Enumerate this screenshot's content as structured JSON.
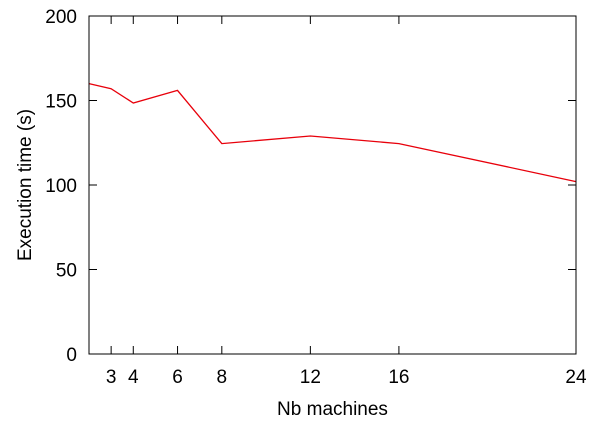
{
  "chart_data": {
    "type": "line",
    "title": "",
    "xlabel": "Nb machines",
    "ylabel": "Execution time (s)",
    "xlim": [
      2,
      24
    ],
    "ylim": [
      0,
      200
    ],
    "x_ticks": [
      3,
      4,
      6,
      8,
      12,
      16,
      24
    ],
    "y_ticks": [
      0,
      50,
      100,
      150,
      200
    ],
    "grid": false,
    "legend": "none",
    "series": [
      {
        "color": "#e8000b",
        "x": [
          2,
          3,
          4,
          6,
          8,
          12,
          16,
          24
        ],
        "y": [
          160,
          157,
          148.5,
          156,
          124.5,
          129,
          124.5,
          102
        ]
      }
    ]
  }
}
